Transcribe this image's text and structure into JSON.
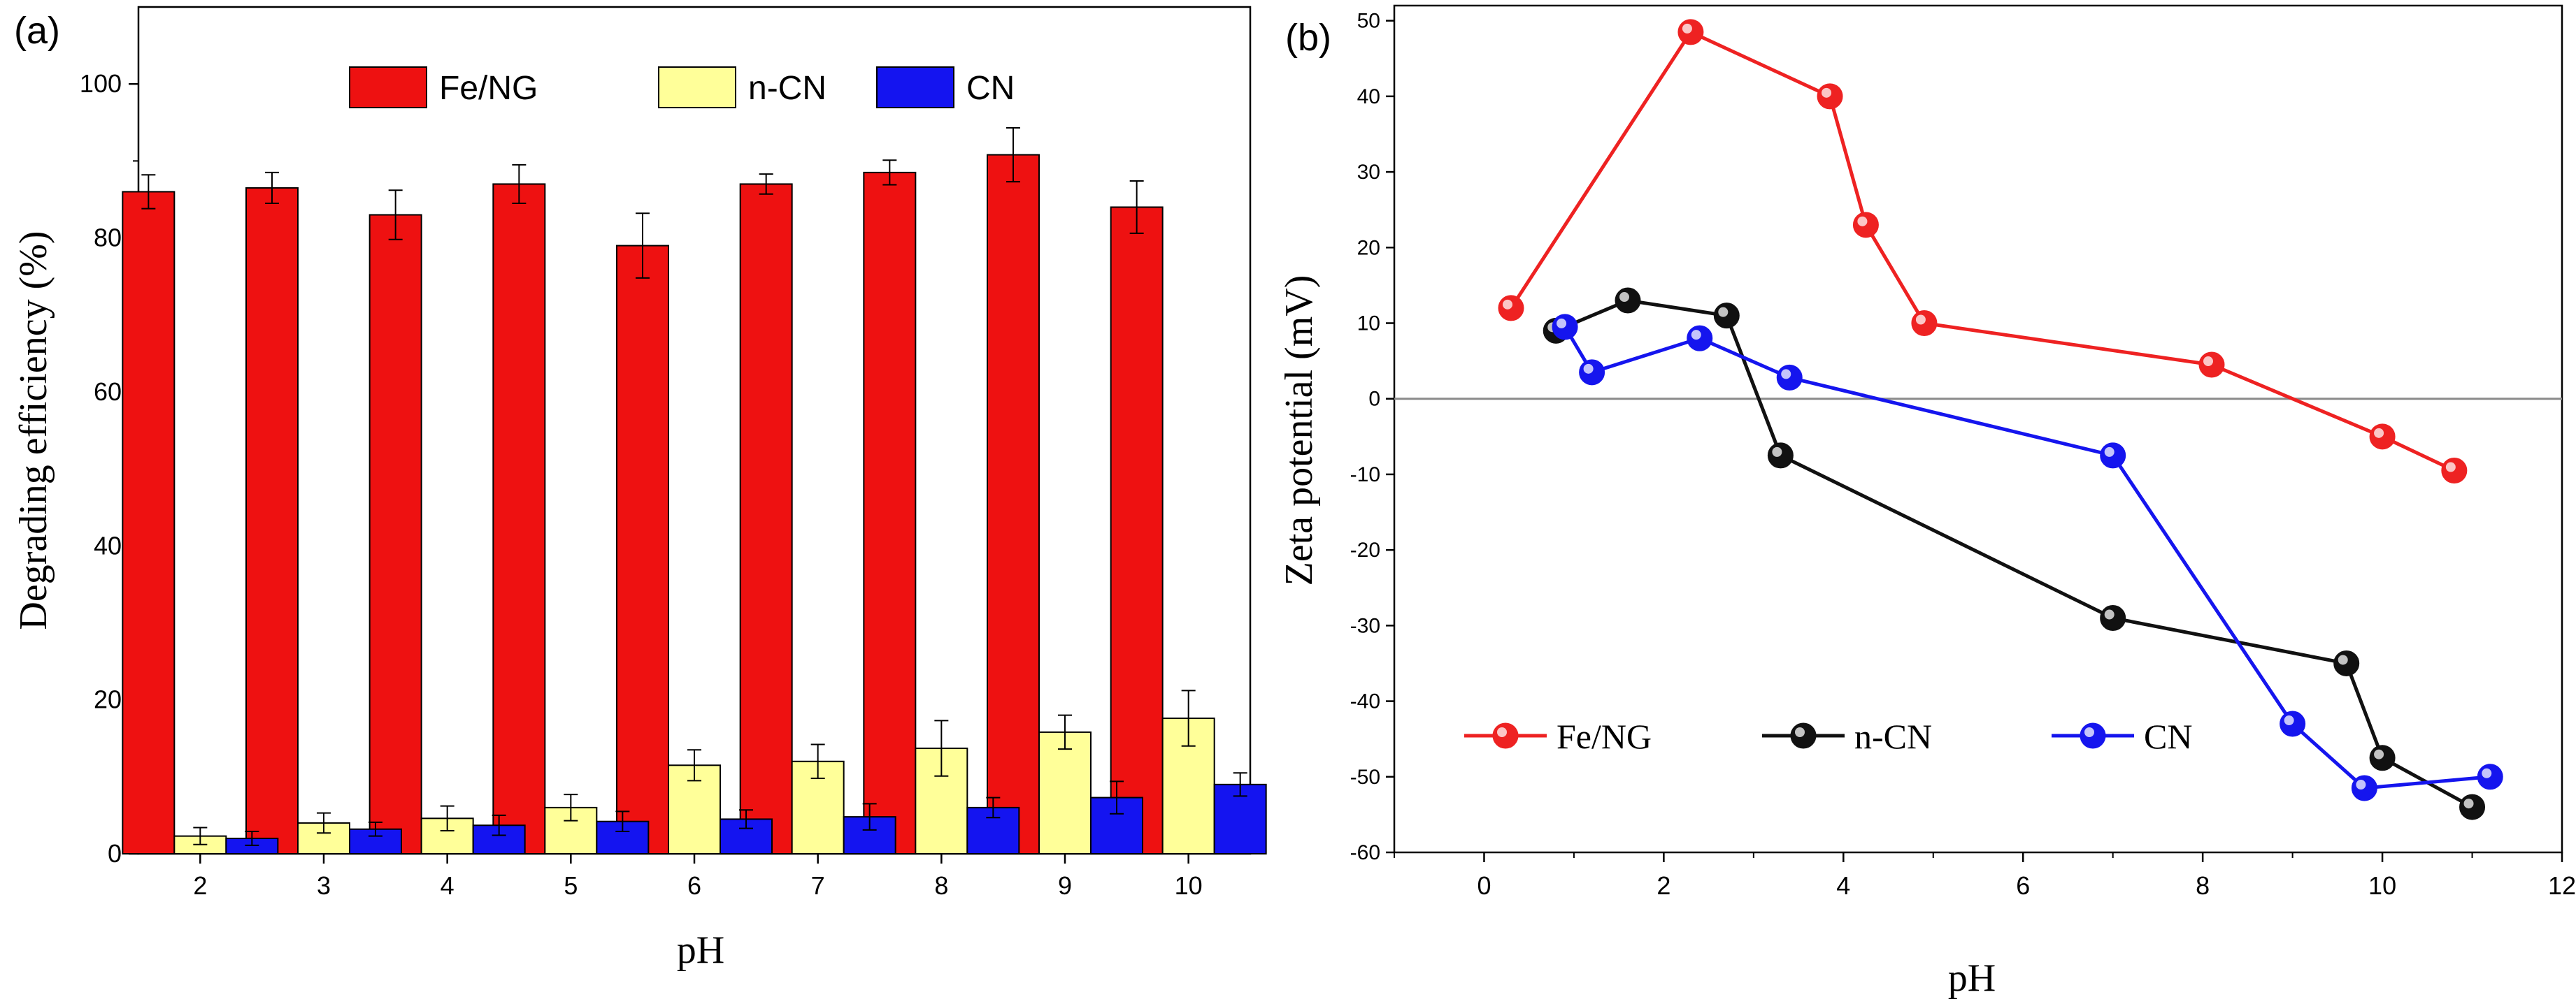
{
  "chart_data": [
    {
      "panel": "(a)",
      "type": "bar",
      "xlabel": "pH",
      "ylabel": "Degrading efficiency (%)",
      "categories": [
        "2",
        "3",
        "4",
        "5",
        "6",
        "7",
        "8",
        "9",
        "10"
      ],
      "ylim": [
        0,
        110
      ],
      "yticks": [
        0,
        20,
        40,
        60,
        80,
        100
      ],
      "legend_position": "top-center",
      "series": [
        {
          "name": "Fe/NG",
          "color": "#ee1111",
          "values": [
            86,
            86.5,
            83,
            87,
            79,
            87,
            88.5,
            90.8,
            84
          ],
          "errors": [
            2.2,
            2,
            3.2,
            2.5,
            4.2,
            1.3,
            1.6,
            3.5,
            3.4
          ]
        },
        {
          "name": "n-CN",
          "color": "#ffff99",
          "values": [
            2.3,
            4,
            4.6,
            6,
            11.5,
            12,
            13.7,
            15.8,
            17.6
          ],
          "errors": [
            1.1,
            1.3,
            1.6,
            1.7,
            2,
            2.2,
            3.6,
            2.2,
            3.6
          ]
        },
        {
          "name": "CN",
          "color": "#1414f0",
          "values": [
            2,
            3.2,
            3.7,
            4.2,
            4.5,
            4.8,
            6,
            7.3,
            9
          ],
          "errors": [
            0.9,
            0.9,
            1.3,
            1.3,
            1.2,
            1.7,
            1.3,
            2.1,
            1.5
          ]
        }
      ]
    },
    {
      "panel": "(b)",
      "type": "line",
      "xlabel": "pH",
      "ylabel": "Zeta potential (mV)",
      "xlim": [
        -1,
        12
      ],
      "ylim": [
        -60,
        52
      ],
      "xticks": [
        0,
        2,
        4,
        6,
        8,
        10,
        12
      ],
      "yticks": [
        -60,
        -50,
        -40,
        -30,
        -20,
        -10,
        0,
        10,
        20,
        30,
        40,
        50
      ],
      "reference_line_y": 0,
      "legend_position": "bottom-left",
      "series": [
        {
          "name": "Fe/NG",
          "color": "#ee2222",
          "points": [
            [
              0.3,
              12
            ],
            [
              2.3,
              48.5
            ],
            [
              3.85,
              40
            ],
            [
              4.25,
              23
            ],
            [
              4.9,
              10
            ],
            [
              8.1,
              4.5
            ],
            [
              10,
              -5
            ],
            [
              10.8,
              -9.5
            ]
          ]
        },
        {
          "name": "n-CN",
          "color": "#111111",
          "points": [
            [
              0.8,
              9
            ],
            [
              1.6,
              13
            ],
            [
              2.7,
              11
            ],
            [
              3.3,
              -7.5
            ],
            [
              7,
              -29
            ],
            [
              9.6,
              -35
            ],
            [
              10,
              -47.5
            ],
            [
              11,
              -54
            ]
          ]
        },
        {
          "name": "CN",
          "color": "#1515ee",
          "points": [
            [
              0.9,
              9.5
            ],
            [
              1.2,
              3.5
            ],
            [
              2.4,
              8
            ],
            [
              3.4,
              2.8
            ],
            [
              7,
              -7.5
            ],
            [
              9,
              -43
            ],
            [
              9.8,
              -51.5
            ],
            [
              11.2,
              -50
            ]
          ]
        }
      ]
    }
  ]
}
